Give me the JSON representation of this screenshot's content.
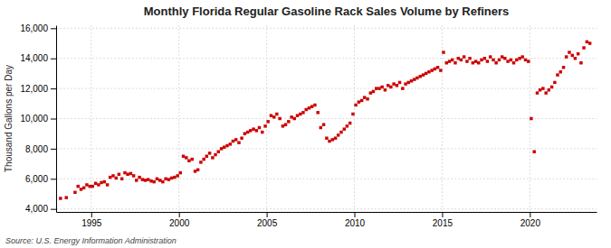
{
  "chart_data": {
    "type": "scatter",
    "title": "Monthly Florida Regular Gasoline Rack Sales Volume by Refiners",
    "ylabel": "Thousand Gallons per Day",
    "source": "Source: U.S. Energy Information Administration",
    "color": "#cc0000",
    "marker": "square",
    "grid": true,
    "xlim": [
      1993.0,
      2023.8
    ],
    "xticks": [
      1995,
      2000,
      2005,
      2010,
      2015,
      2020
    ],
    "ylim": [
      3800,
      16200
    ],
    "yticks": [
      {
        "value": 4000,
        "label": "4,000"
      },
      {
        "value": 6000,
        "label": "6,000"
      },
      {
        "value": 8000,
        "label": "8,000"
      },
      {
        "value": 10000,
        "label": "10,000"
      },
      {
        "value": 12000,
        "label": "12,000"
      },
      {
        "value": 14000,
        "label": "14,000"
      },
      {
        "value": 16000,
        "label": "16,000"
      }
    ],
    "x": [
      1993.25,
      1993.58,
      1994.08,
      1994.25,
      1994.42,
      1994.58,
      1994.75,
      1994.92,
      1995.08,
      1995.25,
      1995.42,
      1995.58,
      1995.75,
      1995.92,
      1996.08,
      1996.25,
      1996.42,
      1996.58,
      1996.75,
      1996.92,
      1997.08,
      1997.25,
      1997.42,
      1997.58,
      1997.75,
      1997.92,
      1998.08,
      1998.25,
      1998.42,
      1998.58,
      1998.75,
      1998.92,
      1999.08,
      1999.25,
      1999.42,
      1999.58,
      1999.75,
      1999.92,
      2000.08,
      2000.25,
      2000.42,
      2000.58,
      2000.75,
      2000.92,
      2001.08,
      2001.25,
      2001.42,
      2001.58,
      2001.75,
      2001.92,
      2002.08,
      2002.25,
      2002.42,
      2002.58,
      2002.75,
      2002.92,
      2003.08,
      2003.25,
      2003.42,
      2003.58,
      2003.75,
      2003.92,
      2004.08,
      2004.25,
      2004.42,
      2004.58,
      2004.75,
      2004.92,
      2005.08,
      2005.25,
      2005.42,
      2005.58,
      2005.75,
      2005.92,
      2006.08,
      2006.25,
      2006.42,
      2006.58,
      2006.75,
      2006.92,
      2007.08,
      2007.25,
      2007.42,
      2007.58,
      2007.75,
      2007.92,
      2008.08,
      2008.25,
      2008.42,
      2008.58,
      2008.75,
      2008.92,
      2009.08,
      2009.25,
      2009.42,
      2009.58,
      2009.75,
      2009.92,
      2010.08,
      2010.25,
      2010.42,
      2010.58,
      2010.75,
      2010.92,
      2011.08,
      2011.25,
      2011.42,
      2011.58,
      2011.75,
      2011.92,
      2012.08,
      2012.25,
      2012.42,
      2012.58,
      2012.75,
      2012.92,
      2013.08,
      2013.25,
      2013.42,
      2013.58,
      2013.75,
      2013.92,
      2014.08,
      2014.25,
      2014.42,
      2014.58,
      2014.75,
      2014.92,
      2015.08,
      2015.25,
      2015.42,
      2015.58,
      2015.75,
      2015.92,
      2016.08,
      2016.25,
      2016.42,
      2016.58,
      2016.75,
      2016.92,
      2017.08,
      2017.25,
      2017.42,
      2017.58,
      2017.75,
      2017.92,
      2018.08,
      2018.25,
      2018.42,
      2018.58,
      2018.75,
      2018.92,
      2019.08,
      2019.25,
      2019.42,
      2019.58,
      2019.75,
      2019.92,
      2020.08,
      2020.25,
      2020.42,
      2020.58,
      2020.75,
      2020.92,
      2021.08,
      2021.25,
      2021.42,
      2021.58,
      2021.75,
      2021.92,
      2022.08,
      2022.25,
      2022.42,
      2022.58,
      2022.75,
      2022.92,
      2023.08,
      2023.25,
      2023.42
    ],
    "values": [
      4700,
      4750,
      5100,
      5500,
      5300,
      5400,
      5600,
      5500,
      5500,
      5700,
      5600,
      5750,
      5800,
      5600,
      6100,
      6200,
      6050,
      6300,
      6000,
      6400,
      6300,
      6350,
      6200,
      5900,
      6100,
      5950,
      5900,
      5950,
      5850,
      5800,
      6000,
      5900,
      5800,
      6000,
      5950,
      6050,
      6100,
      6200,
      6400,
      7500,
      7400,
      7200,
      7300,
      6500,
      6600,
      7100,
      7300,
      7500,
      7700,
      7400,
      7600,
      7800,
      8000,
      8100,
      8200,
      8300,
      8500,
      8600,
      8400,
      8700,
      9000,
      9100,
      9200,
      9300,
      9200,
      9400,
      9100,
      9500,
      9800,
      10200,
      10100,
      10300,
      10000,
      9500,
      9600,
      9800,
      10100,
      10000,
      10200,
      10300,
      10400,
      10600,
      10700,
      10800,
      10900,
      10400,
      9400,
      9600,
      8700,
      8500,
      8600,
      8700,
      8900,
      9100,
      9300,
      9500,
      9700,
      10300,
      10900,
      11100,
      11200,
      11400,
      11300,
      11700,
      11800,
      12000,
      12000,
      12100,
      11900,
      12200,
      12100,
      12300,
      12200,
      12400,
      12000,
      12300,
      12400,
      12500,
      12600,
      12700,
      12800,
      12900,
      13000,
      13100,
      13200,
      13300,
      13400,
      13200,
      14400,
      13700,
      13800,
      13900,
      13700,
      14000,
      13900,
      14100,
      13800,
      14000,
      13700,
      13800,
      13700,
      13900,
      14000,
      13800,
      14100,
      13900,
      13700,
      13900,
      14100,
      14000,
      13800,
      13900,
      13700,
      13900,
      14000,
      14100,
      13900,
      13800,
      10000,
      7800,
      11700,
      11900,
      12000,
      11700,
      11900,
      12100,
      12400,
      12900,
      13100,
      13400,
      14100,
      14400,
      14200,
      14000,
      14300,
      13700,
      14700,
      15100,
      15000
    ]
  }
}
